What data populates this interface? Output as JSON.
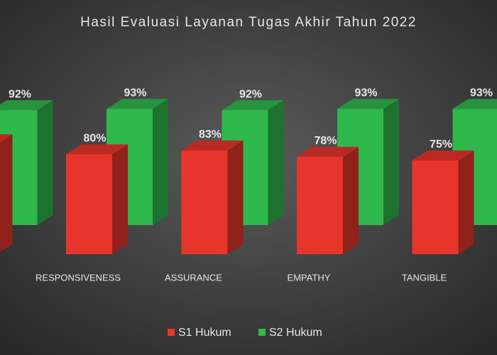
{
  "chart_data": {
    "type": "bar3d",
    "title": "Hasil Evaluasi Layanan Tugas Akhir Tahun 2022",
    "categories": [
      null,
      "RESPONSIVENESS",
      "ASSURANCE",
      "EMPATHY",
      "TANGIBLE"
    ],
    "ylim": [
      0,
      100
    ],
    "series": [
      {
        "name": "S1 Hukum",
        "color": "#e8352b",
        "values": [
          88,
          80,
          83,
          78,
          75
        ],
        "value_labels": [
          null,
          "80%",
          "83%",
          "78%",
          "75%"
        ]
      },
      {
        "name": "S2 Hukum",
        "color": "#2fb84c",
        "values": [
          92,
          93,
          92,
          93,
          93
        ],
        "value_labels": [
          "92%",
          "93%",
          "92%",
          "93%",
          "93%"
        ]
      }
    ]
  }
}
